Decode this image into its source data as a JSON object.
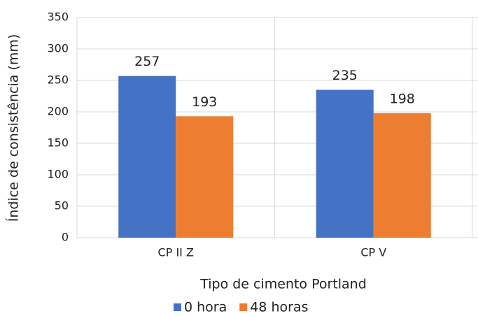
{
  "chart_data": {
    "type": "bar",
    "categories": [
      "CP II Z",
      "CP V"
    ],
    "series": [
      {
        "name": "0 hora",
        "color": "#4472c4",
        "values": [
          257,
          235
        ]
      },
      {
        "name": "48 horas",
        "color": "#ed7d31",
        "values": [
          193,
          198
        ]
      }
    ],
    "x_label": "Tipo de cimento Portland",
    "y_label": "Índice de consistência (mm)",
    "ylim": [
      0,
      350
    ],
    "yticks": [
      0,
      50,
      100,
      150,
      200,
      250,
      300,
      350
    ],
    "grid": true,
    "legend": "bottom"
  }
}
